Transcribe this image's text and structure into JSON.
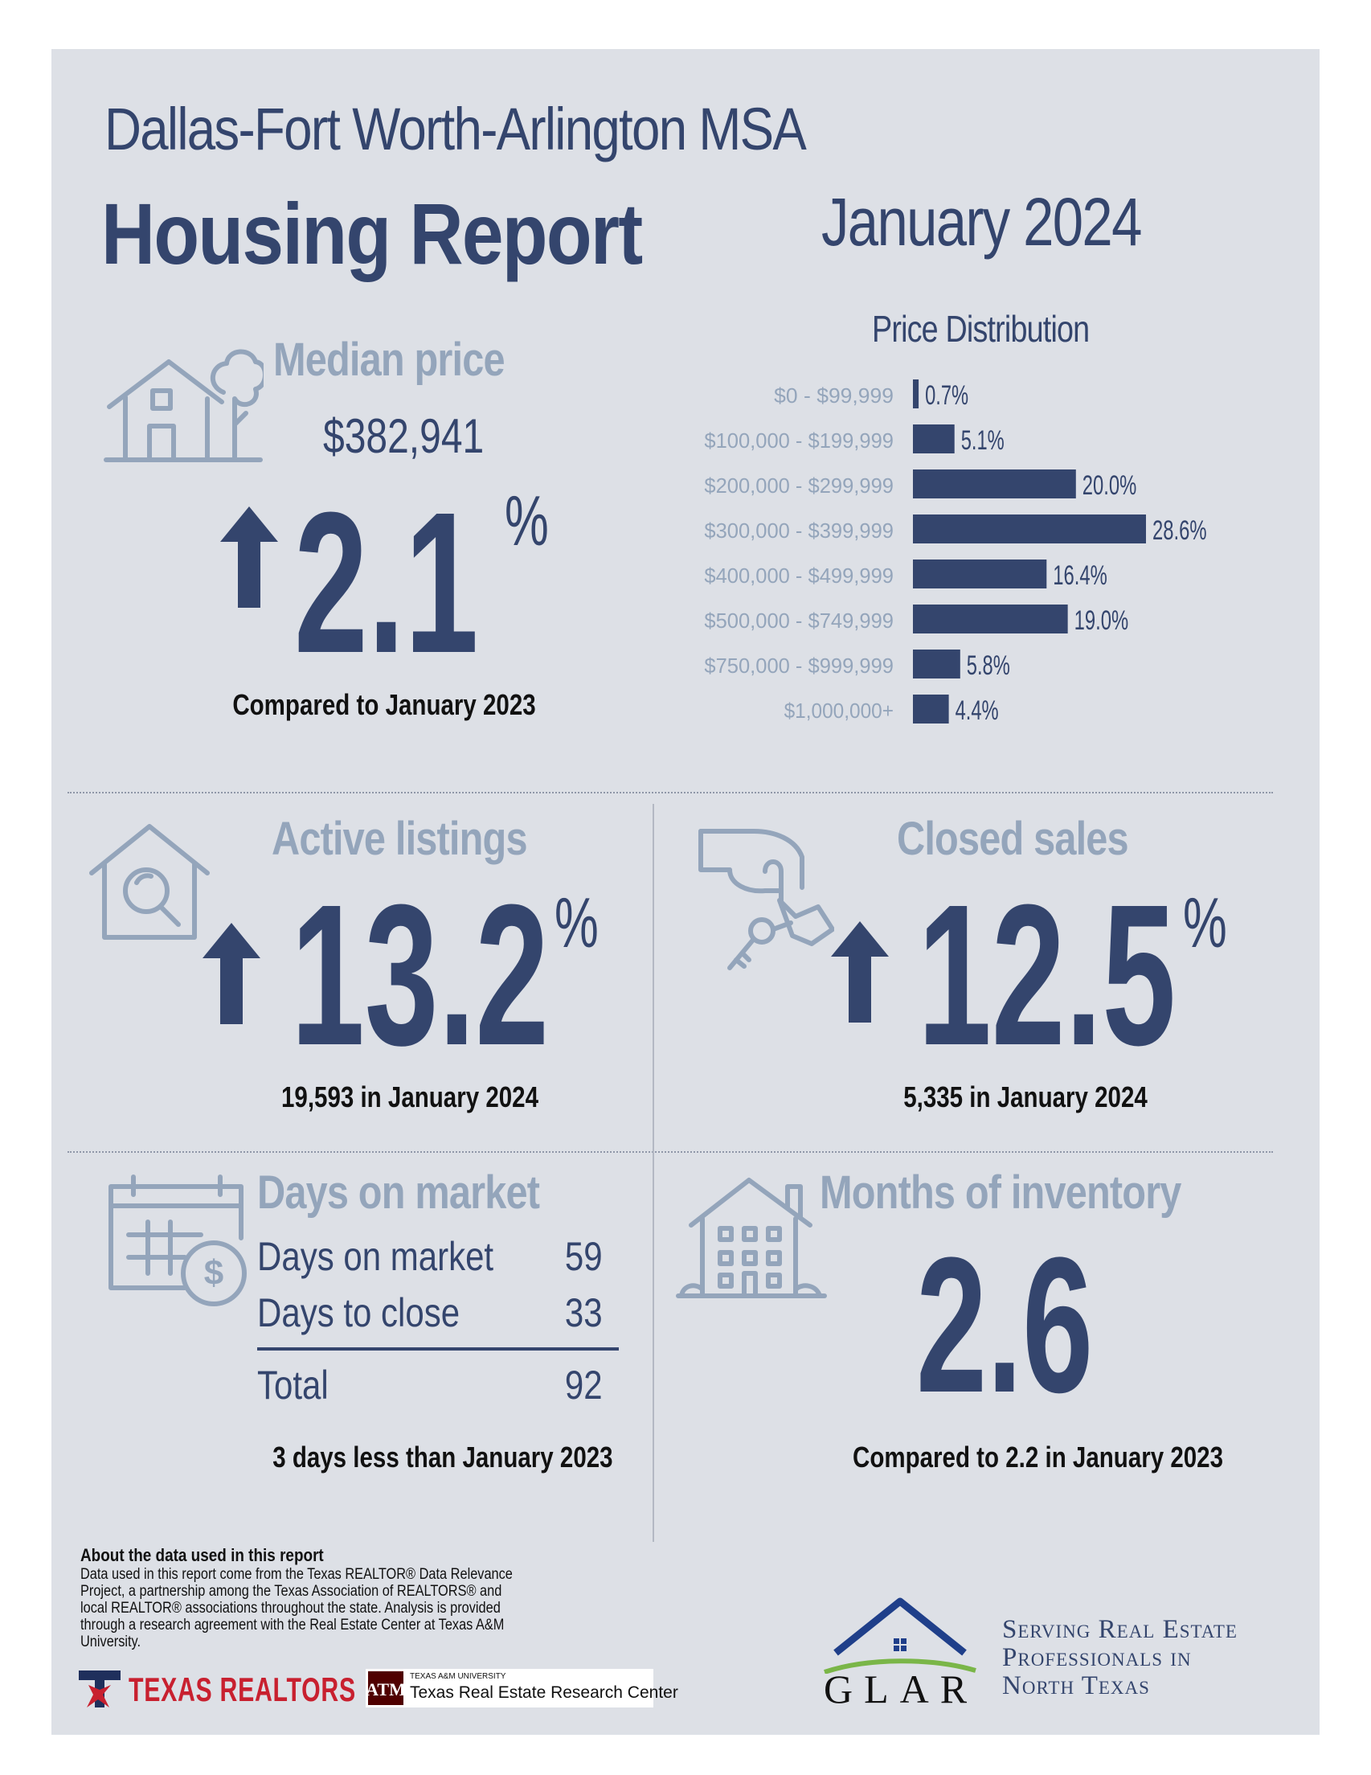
{
  "header": {
    "msa": "Dallas-Fort Worth-Arlington MSA",
    "title": "Housing Report",
    "date": "January 2024"
  },
  "median_price": {
    "title": "Median price",
    "value": "$382,941",
    "change": "2.1",
    "unit": "%",
    "caption": "Compared to January 2023",
    "direction_icon": "arrow-up-icon",
    "icon": "house-tree-icon"
  },
  "price_distribution": {
    "title": "Price Distribution"
  },
  "chart_data": {
    "type": "bar",
    "orientation": "horizontal",
    "title": "Price Distribution",
    "categories": [
      "$0 - $99,999",
      "$100,000 - $199,999",
      "$200,000 - $299,999",
      "$300,000 - $399,999",
      "$400,000 - $499,999",
      "$500,000 - $749,999",
      "$750,000 - $999,999",
      "$1,000,000+"
    ],
    "values": [
      0.7,
      5.1,
      20.0,
      28.6,
      16.4,
      19.0,
      5.8,
      4.4
    ],
    "labels": [
      "0.7%",
      "5.1%",
      "20.0%",
      "28.6%",
      "16.4%",
      "19.0%",
      "5.8%",
      "4.4%"
    ],
    "bar_color": "#34456d",
    "xlim": [
      0,
      28.6
    ]
  },
  "active_listings": {
    "title": "Active listings",
    "change": "13.2",
    "unit": "%",
    "caption": "19,593 in January 2024",
    "direction_icon": "arrow-up-icon",
    "icon": "house-search-icon"
  },
  "closed_sales": {
    "title": "Closed sales",
    "change": "12.5",
    "unit": "%",
    "caption": "5,335 in January 2024",
    "direction_icon": "arrow-up-icon",
    "icon": "hand-keys-icon"
  },
  "days_on_market": {
    "title": "Days on market",
    "rows": [
      {
        "label": "Days on market",
        "value": "59"
      },
      {
        "label": "Days to close",
        "value": "33"
      }
    ],
    "total_label": "Total",
    "total_value": "92",
    "caption": "3 days less than January 2023",
    "icon": "calendar-dollar-icon"
  },
  "months_inventory": {
    "title": "Months of inventory",
    "value": "2.6",
    "caption": "Compared to 2.2 in January 2023",
    "icon": "apartment-house-icon"
  },
  "footer": {
    "about_title": "About the data used in this report",
    "about_text": "Data used in this report come from the Texas REALTOR® Data Relevance Project, a partnership among the Texas Association of REALTORS® and local REALTOR® associations throughout the state. Analysis is provided through a research agreement with the Real Estate Center at Texas A&M University.",
    "texas_realtors": "TEXAS REALTORS",
    "tamu_small": "TEXAS A&M UNIVERSITY",
    "tamu_name": "Texas Real Estate Research Center",
    "glar": "GLAR",
    "tagline": [
      "Serving Real Estate",
      "Professionals in",
      "North Texas"
    ],
    "colors": {
      "navy": "#34456d",
      "gray": "#94a5bb",
      "red": "#c8202f",
      "maroon": "#500000",
      "green": "#7ab648"
    }
  }
}
